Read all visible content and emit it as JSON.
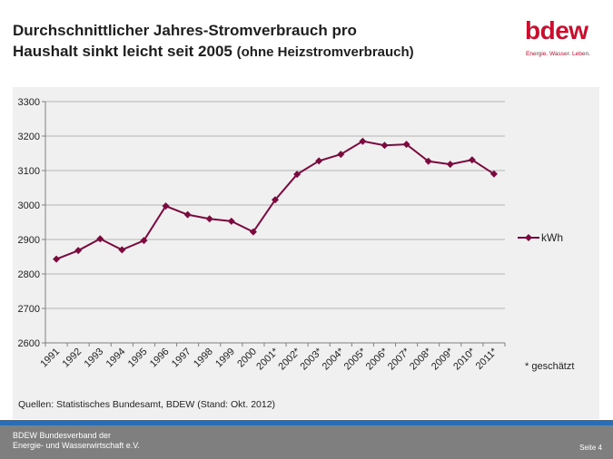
{
  "slide": {
    "title_line1": "Durchschnittlicher Jahres-Stromverbrauch pro",
    "title_line2": "Haushalt sinkt leicht seit 2005",
    "title_sub": "(ohne Heizstromverbrauch)",
    "logo_text": "bdew",
    "logo_tagline": "Energie. Wasser. Leben.",
    "footnote": "* geschätzt",
    "source": "Quellen: Statistisches Bundesamt, BDEW (Stand: Okt. 2012)",
    "footer_org_line1": "BDEW Bundesverband der",
    "footer_org_line2": "Energie- und Wasserwirtschaft e.V.",
    "page_label": "Seite 4",
    "brand_color": "#c8102e",
    "footer_accent": "#2a6db5"
  },
  "chart_data": {
    "type": "line",
    "categories": [
      "1991",
      "1992",
      "1993",
      "1994",
      "1995",
      "1996",
      "1997",
      "1998",
      "1999",
      "2000",
      "2001*",
      "2002*",
      "2003*",
      "2004*",
      "2005*",
      "2006*",
      "2007*",
      "2008*",
      "2009*",
      "2010*",
      "2011*"
    ],
    "series": [
      {
        "name": "kWh",
        "color": "#7b0a3e",
        "values": [
          2843,
          2868,
          2902,
          2870,
          2897,
          2997,
          2972,
          2960,
          2953,
          2922,
          3015,
          3089,
          3128,
          3147,
          3185,
          3173,
          3176,
          3127,
          3118,
          3131,
          3090
        ]
      }
    ],
    "ylim": [
      2600,
      3300
    ],
    "yticks": [
      2600,
      2700,
      2800,
      2900,
      3000,
      3100,
      3200,
      3300
    ],
    "grid": true,
    "legend": "right"
  }
}
